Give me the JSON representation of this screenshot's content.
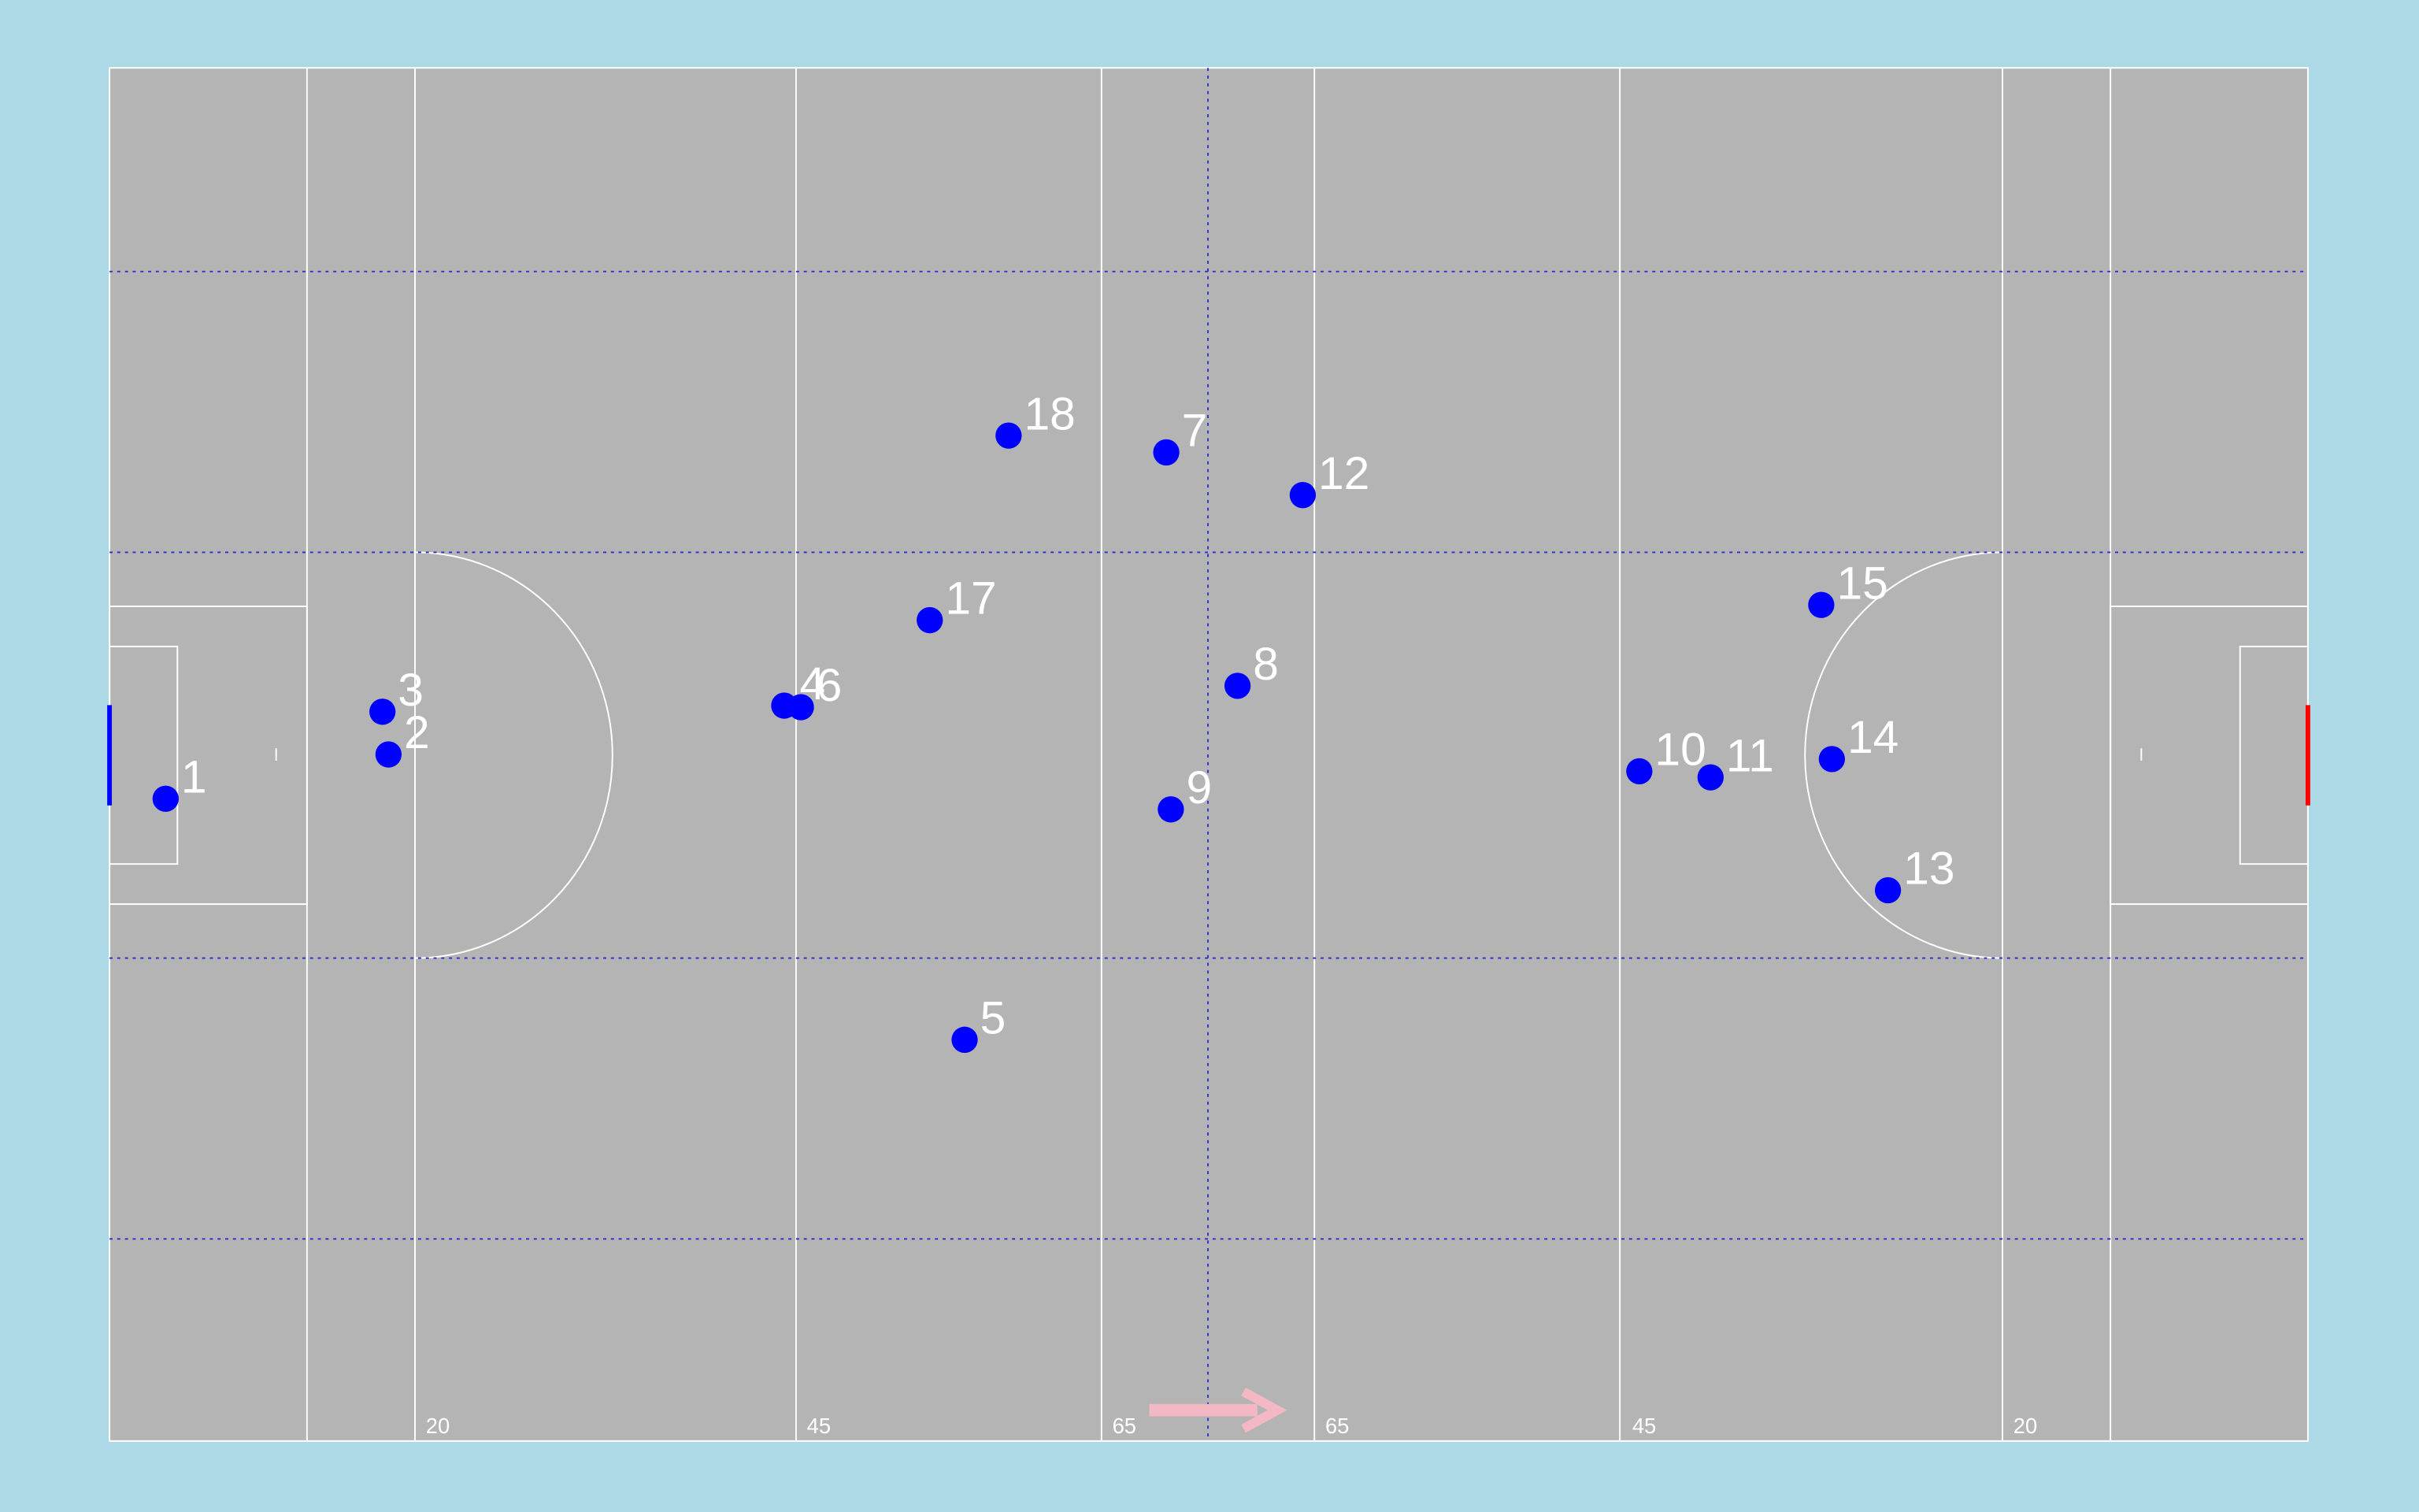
{
  "chart_data": {
    "type": "scatter",
    "x": [
      3.7,
      18.4,
      18.0,
      44.5,
      56.4,
      45.6,
      69.7,
      74.4,
      70.0,
      100.9,
      105.6,
      78.7,
      117.3,
      113.6,
      112.9,
      54.1,
      59.3
    ],
    "values": [
      47.9,
      45.0,
      42.2,
      41.8,
      63.7,
      41.9,
      25.2,
      40.5,
      48.6,
      46.1,
      46.5,
      28.0,
      53.9,
      45.3,
      35.2,
      36.2,
      24.1
    ],
    "labels": [
      "1",
      "2",
      "3",
      "4",
      "5",
      "6",
      "7",
      "8",
      "9",
      "10",
      "11",
      "12",
      "13",
      "14",
      "15",
      "17",
      "18"
    ],
    "color": "#0000ff",
    "xlim": [
      0,
      145
    ],
    "ylim": [
      90,
      0
    ],
    "pitch_labels": [
      "20",
      "45",
      "65",
      "65",
      "45",
      "20"
    ]
  }
}
